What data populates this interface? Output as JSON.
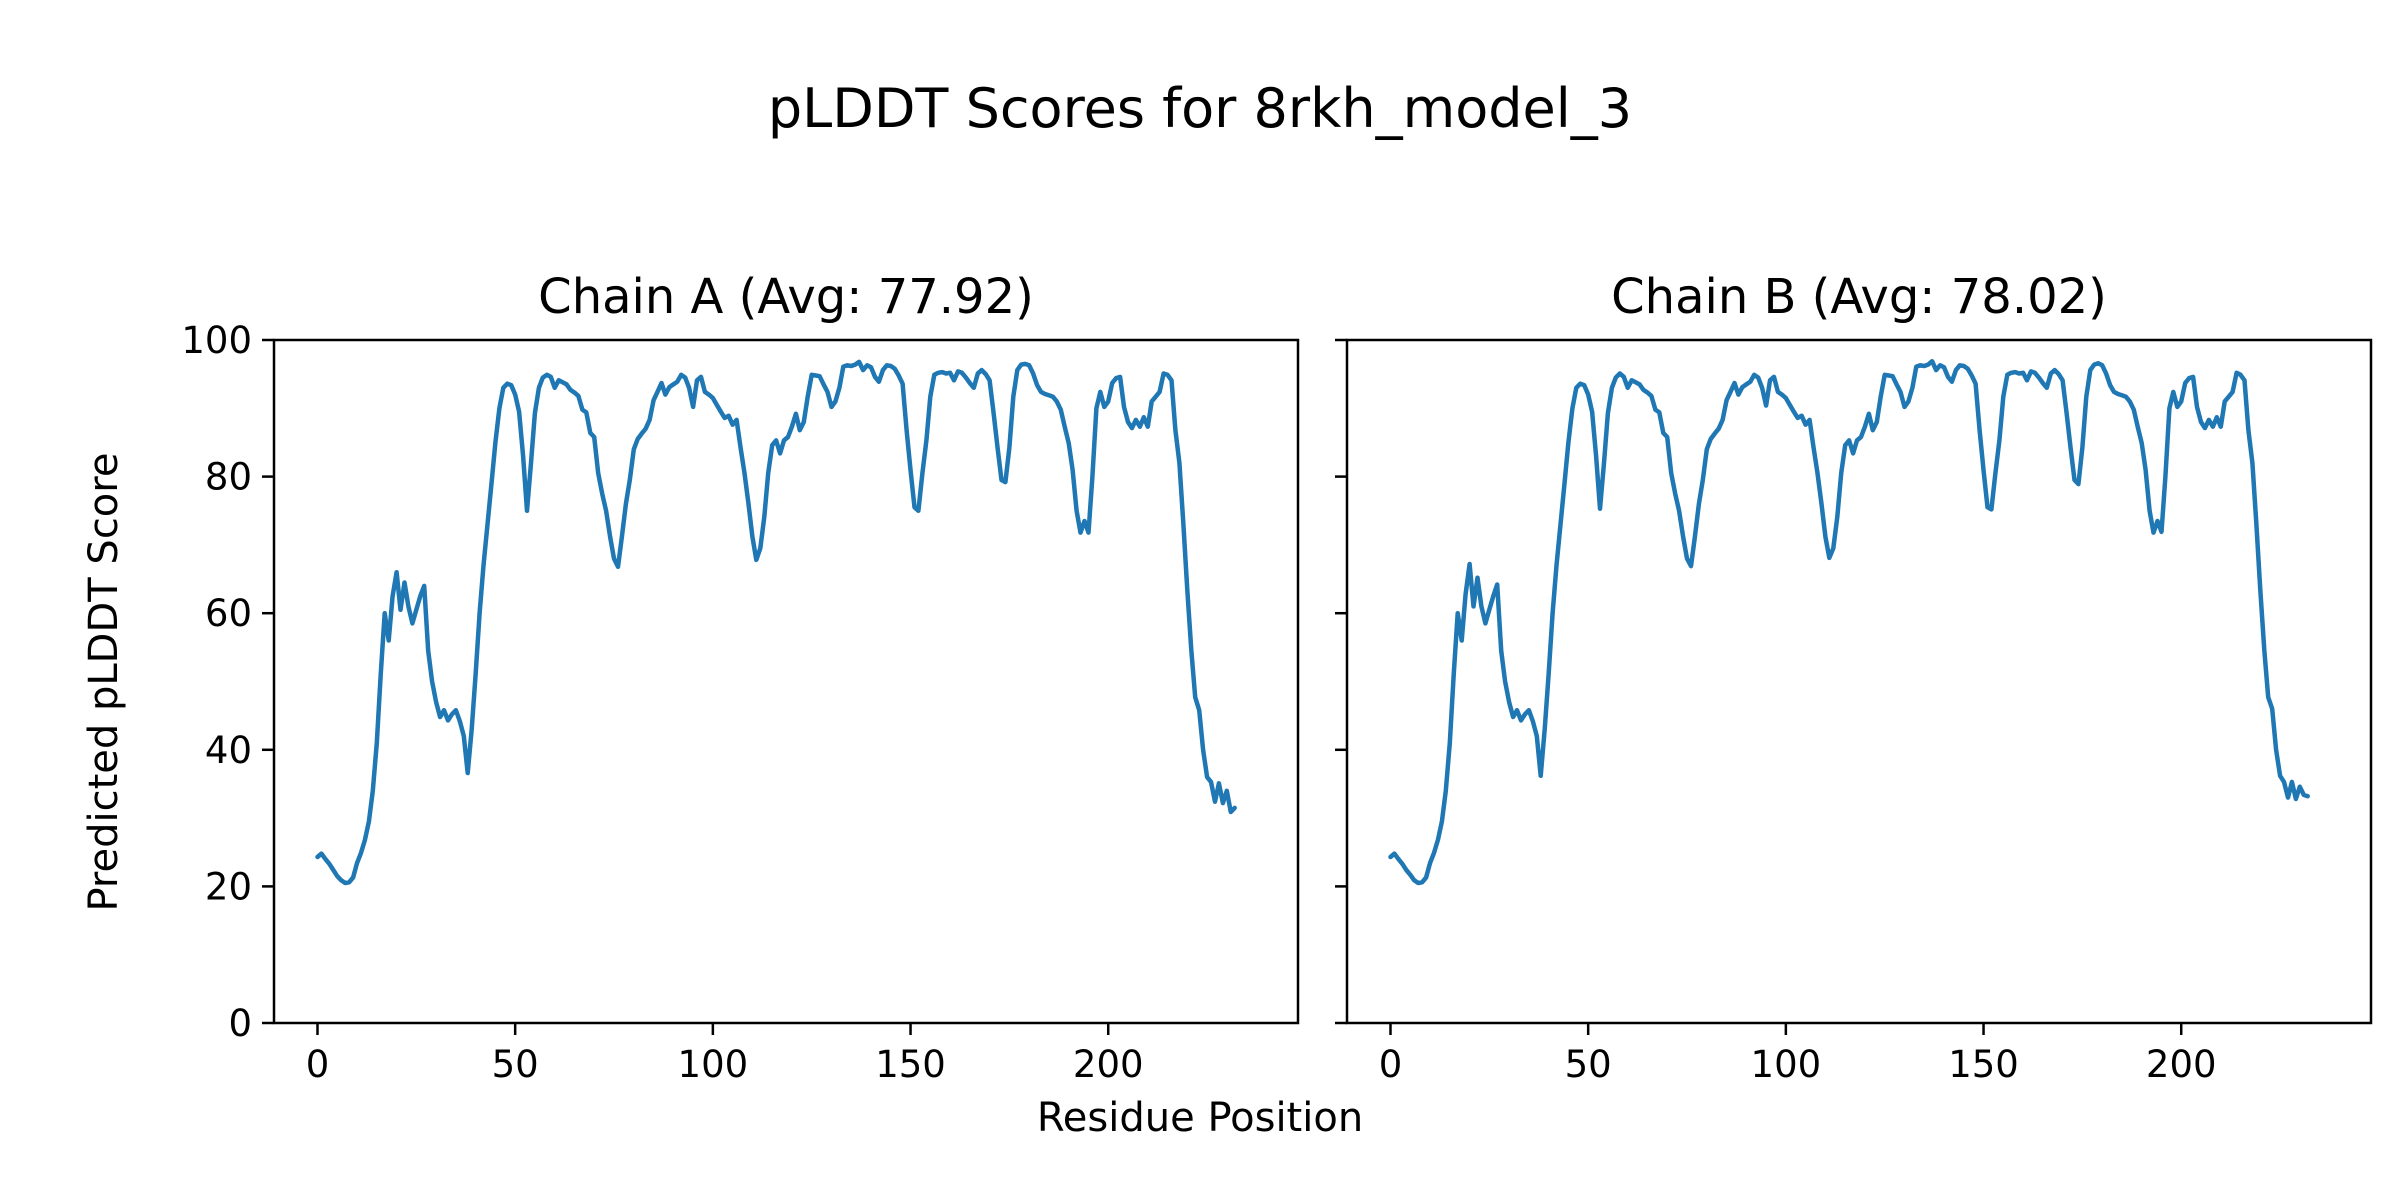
{
  "figure": {
    "title": "pLDDT Scores for 8rkh_model_3",
    "xlabel": "Residue Position",
    "ylabel": "Predicted pLDDT Score",
    "background_color": "#ffffff",
    "text_color": "#000000",
    "line_color": "#1f77b4"
  },
  "chart_data": [
    {
      "type": "line",
      "title": "Chain A (Avg: 77.92)",
      "chain": "A",
      "average": 77.92,
      "xlabel": "Residue Position",
      "ylabel": "Predicted pLDDT Score",
      "xlim": [
        -11,
        248
      ],
      "ylim": [
        0,
        100
      ],
      "xticks": [
        0,
        50,
        100,
        150,
        200
      ],
      "yticks": [
        0,
        20,
        40,
        60,
        80,
        100
      ],
      "show_ytick_labels": true,
      "grid": false,
      "legend": "none",
      "series": [
        {
          "name": "Chain A pLDDT",
          "x_start": 0,
          "x_step": 1,
          "values": [
            24.3,
            24.8,
            24.0,
            23.3,
            22.4,
            21.5,
            20.9,
            20.5,
            20.6,
            21.3,
            23.4,
            24.9,
            26.8,
            29.5,
            34.0,
            41.0,
            51.0,
            60.0,
            56.0,
            62.5,
            66.0,
            60.5,
            64.5,
            61.0,
            58.5,
            60.5,
            62.5,
            64.0,
            54.5,
            50.0,
            47.0,
            44.8,
            45.8,
            44.3,
            45.2,
            45.8,
            44.2,
            42.0,
            36.6,
            43.0,
            51.0,
            60.0,
            67.0,
            73.0,
            79.0,
            85.0,
            90.0,
            93.0,
            93.6,
            93.4,
            92.0,
            89.5,
            83.0,
            75.0,
            82.0,
            89.3,
            93.0,
            94.5,
            94.9,
            94.6,
            93.0,
            94.1,
            93.8,
            93.5,
            92.7,
            92.3,
            91.8,
            89.8,
            89.4,
            86.4,
            85.8,
            80.5,
            77.5,
            75.0,
            71.2,
            68.0,
            66.8,
            71.2,
            76.0,
            79.5,
            84.0,
            85.5,
            86.3,
            87.0,
            88.3,
            91.2,
            92.4,
            93.7,
            92.0,
            93.1,
            93.5,
            93.9,
            94.9,
            94.5,
            93.0,
            90.2,
            94.1,
            94.6,
            92.4,
            92.0,
            91.5,
            90.5,
            89.5,
            88.6,
            88.9,
            87.6,
            88.3,
            84.3,
            80.5,
            76.1,
            71.2,
            67.8,
            69.5,
            74.1,
            80.5,
            84.6,
            85.3,
            83.4,
            85.3,
            85.8,
            87.3,
            89.2,
            86.8,
            88.0,
            91.7,
            94.9,
            94.8,
            94.7,
            93.5,
            92.4,
            90.2,
            91.0,
            93.0,
            96.1,
            96.3,
            96.2,
            96.4,
            96.8,
            95.6,
            96.3,
            96.0,
            94.6,
            93.9,
            95.6,
            96.3,
            96.2,
            95.8,
            94.8,
            93.6,
            86.8,
            81.0,
            75.5,
            75.0,
            80.5,
            85.3,
            91.7,
            94.9,
            95.2,
            95.3,
            95.1,
            95.2,
            94.1,
            95.4,
            95.2,
            94.5,
            93.7,
            93.0,
            95.1,
            95.6,
            95.0,
            94.1,
            89.3,
            84.3,
            79.5,
            79.2,
            84.3,
            91.7,
            95.6,
            96.4,
            96.5,
            96.3,
            95.1,
            93.4,
            92.4,
            92.1,
            91.9,
            91.7,
            91.0,
            89.8,
            87.3,
            84.9,
            81.0,
            75.0,
            71.8,
            73.5,
            71.8,
            80.0,
            90.0,
            92.4,
            90.2,
            91.0,
            93.7,
            94.4,
            94.6,
            90.2,
            88.0,
            87.1,
            88.3,
            87.3,
            88.7,
            87.3,
            91.0,
            91.7,
            92.4,
            95.1,
            94.9,
            94.1,
            86.8,
            82.0,
            73.2,
            63.4,
            54.6,
            47.7,
            45.8,
            40.0,
            36.0,
            35.3,
            32.4,
            35.1,
            32.2,
            34.0,
            30.9,
            31.5
          ]
        }
      ]
    },
    {
      "type": "line",
      "title": "Chain B (Avg: 78.02)",
      "chain": "B",
      "average": 78.02,
      "xlabel": "Residue Position",
      "ylabel": "Predicted pLDDT Score",
      "xlim": [
        -11,
        248
      ],
      "ylim": [
        0,
        100
      ],
      "xticks": [
        0,
        50,
        100,
        150,
        200
      ],
      "yticks": [
        0,
        20,
        40,
        60,
        80,
        100
      ],
      "show_ytick_labels": false,
      "grid": false,
      "legend": "none",
      "series": [
        {
          "name": "Chain B pLDDT",
          "x_start": 0,
          "x_step": 1,
          "values": [
            24.3,
            24.8,
            24.0,
            23.3,
            22.4,
            21.7,
            20.9,
            20.5,
            20.6,
            21.3,
            23.4,
            24.9,
            26.8,
            29.5,
            34.0,
            41.0,
            51.0,
            60.0,
            56.0,
            62.8,
            67.2,
            61.0,
            65.2,
            61.0,
            58.5,
            60.5,
            62.5,
            64.2,
            54.5,
            50.0,
            47.0,
            44.8,
            45.8,
            44.3,
            45.2,
            45.8,
            44.2,
            42.0,
            36.2,
            43.0,
            51.0,
            60.0,
            67.0,
            73.0,
            79.0,
            85.0,
            90.0,
            93.0,
            93.6,
            93.4,
            92.0,
            89.5,
            83.0,
            75.3,
            82.0,
            89.3,
            93.0,
            94.5,
            95.1,
            94.6,
            93.0,
            94.1,
            93.8,
            93.5,
            92.7,
            92.3,
            91.8,
            89.8,
            89.4,
            86.4,
            85.8,
            80.5,
            77.5,
            75.0,
            71.2,
            68.0,
            66.9,
            71.2,
            76.0,
            79.5,
            84.0,
            85.5,
            86.3,
            87.0,
            88.3,
            91.2,
            92.4,
            93.7,
            92.0,
            93.1,
            93.5,
            93.9,
            94.9,
            94.5,
            93.0,
            90.4,
            94.1,
            94.6,
            92.4,
            92.0,
            91.5,
            90.5,
            89.5,
            88.6,
            88.9,
            87.6,
            88.3,
            84.3,
            80.5,
            76.1,
            71.2,
            68.1,
            69.5,
            74.1,
            80.5,
            84.6,
            85.3,
            83.4,
            85.3,
            85.8,
            87.3,
            89.2,
            86.8,
            88.0,
            91.7,
            94.9,
            94.8,
            94.7,
            93.5,
            92.4,
            90.2,
            91.0,
            93.0,
            96.1,
            96.3,
            96.2,
            96.4,
            96.9,
            95.6,
            96.3,
            96.0,
            94.6,
            93.9,
            95.6,
            96.3,
            96.2,
            95.8,
            94.8,
            93.6,
            86.8,
            81.0,
            75.5,
            75.2,
            80.5,
            85.3,
            91.7,
            94.9,
            95.2,
            95.3,
            95.1,
            95.2,
            94.1,
            95.4,
            95.2,
            94.5,
            93.7,
            93.0,
            95.1,
            95.6,
            95.0,
            94.1,
            89.3,
            84.3,
            79.5,
            78.9,
            84.3,
            91.7,
            95.6,
            96.4,
            96.6,
            96.3,
            95.1,
            93.4,
            92.4,
            92.1,
            91.9,
            91.7,
            91.0,
            89.8,
            87.3,
            84.9,
            81.0,
            75.0,
            71.8,
            73.5,
            71.9,
            80.0,
            90.0,
            92.4,
            90.2,
            91.0,
            93.7,
            94.4,
            94.6,
            90.2,
            88.0,
            87.1,
            88.3,
            87.3,
            88.7,
            87.3,
            91.0,
            91.7,
            92.4,
            95.2,
            94.9,
            94.1,
            86.8,
            82.0,
            73.2,
            63.4,
            54.6,
            47.7,
            46.0,
            40.0,
            36.2,
            35.3,
            33.0,
            35.3,
            32.8,
            34.6,
            33.4,
            33.2
          ]
        }
      ]
    }
  ]
}
